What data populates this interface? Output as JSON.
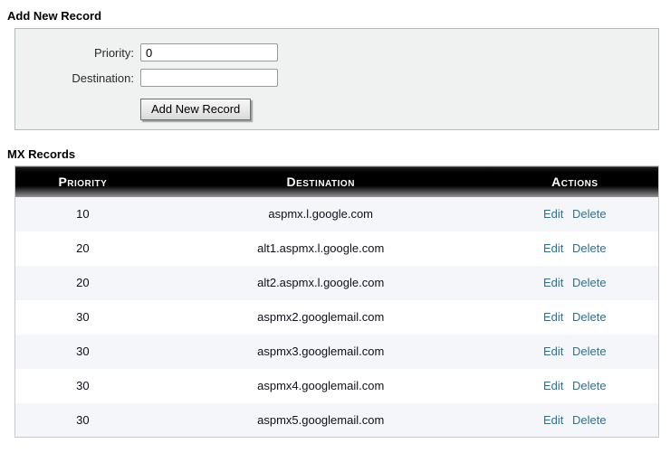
{
  "page": {
    "add_section_title": "Add New Record",
    "records_section_title": "MX Records"
  },
  "form": {
    "priority_label": "Priority:",
    "priority_value": "0",
    "destination_label": "Destination:",
    "destination_value": "",
    "submit_label": "Add New Record"
  },
  "table": {
    "columns": [
      "Priority",
      "Destination",
      "Actions"
    ],
    "rows": [
      {
        "priority": "10",
        "destination": "aspmx.l.google.com"
      },
      {
        "priority": "20",
        "destination": "alt1.aspmx.l.google.com"
      },
      {
        "priority": "20",
        "destination": "alt2.aspmx.l.google.com"
      },
      {
        "priority": "30",
        "destination": "aspmx2.googlemail.com"
      },
      {
        "priority": "30",
        "destination": "aspmx3.googlemail.com"
      },
      {
        "priority": "30",
        "destination": "aspmx4.googlemail.com"
      },
      {
        "priority": "30",
        "destination": "aspmx5.googlemail.com"
      }
    ],
    "edit_label": "Edit",
    "delete_label": "Delete"
  },
  "colors": {
    "link": "#33708e",
    "row_alt_bg": "#f4f6f9",
    "panel_bg": "#f0f1f1",
    "header_bg": "#000000",
    "header_bg_fade": "#9b9b9b",
    "header_text": "#ffffff"
  }
}
